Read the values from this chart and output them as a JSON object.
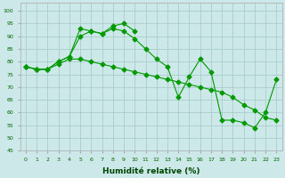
{
  "xlabel": "Humidité relative (%)",
  "background_color": "#cce8e8",
  "grid_color": "#aacccc",
  "line_color": "#009900",
  "x": [
    0,
    1,
    2,
    3,
    4,
    5,
    6,
    7,
    8,
    9,
    10,
    11,
    12,
    13,
    14,
    15,
    16,
    17,
    18,
    19,
    20,
    21,
    22,
    23
  ],
  "series1": [
    78,
    77,
    77,
    80,
    82,
    90,
    92,
    91,
    93,
    92,
    89,
    85,
    81,
    78,
    66,
    74,
    81,
    76,
    57,
    57,
    56,
    54,
    60,
    73
  ],
  "series2": [
    78,
    77,
    77,
    79,
    81,
    81,
    80,
    79,
    78,
    77,
    76,
    75,
    74,
    73,
    72,
    71,
    70,
    69,
    68,
    66,
    63,
    61,
    58,
    57
  ],
  "series3_x": [
    0,
    1,
    2,
    3,
    4,
    5,
    6,
    7,
    8,
    9,
    10
  ],
  "series3_y": [
    78,
    77,
    77,
    80,
    82,
    93,
    92,
    91,
    94,
    95,
    92
  ],
  "ylim": [
    45,
    103
  ],
  "yticks": [
    45,
    50,
    55,
    60,
    65,
    70,
    75,
    80,
    85,
    90,
    95,
    100
  ],
  "xlim": [
    -0.5,
    23.5
  ],
  "xticks": [
    0,
    1,
    2,
    3,
    4,
    5,
    6,
    7,
    8,
    9,
    10,
    11,
    12,
    13,
    14,
    15,
    16,
    17,
    18,
    19,
    20,
    21,
    22,
    23
  ]
}
